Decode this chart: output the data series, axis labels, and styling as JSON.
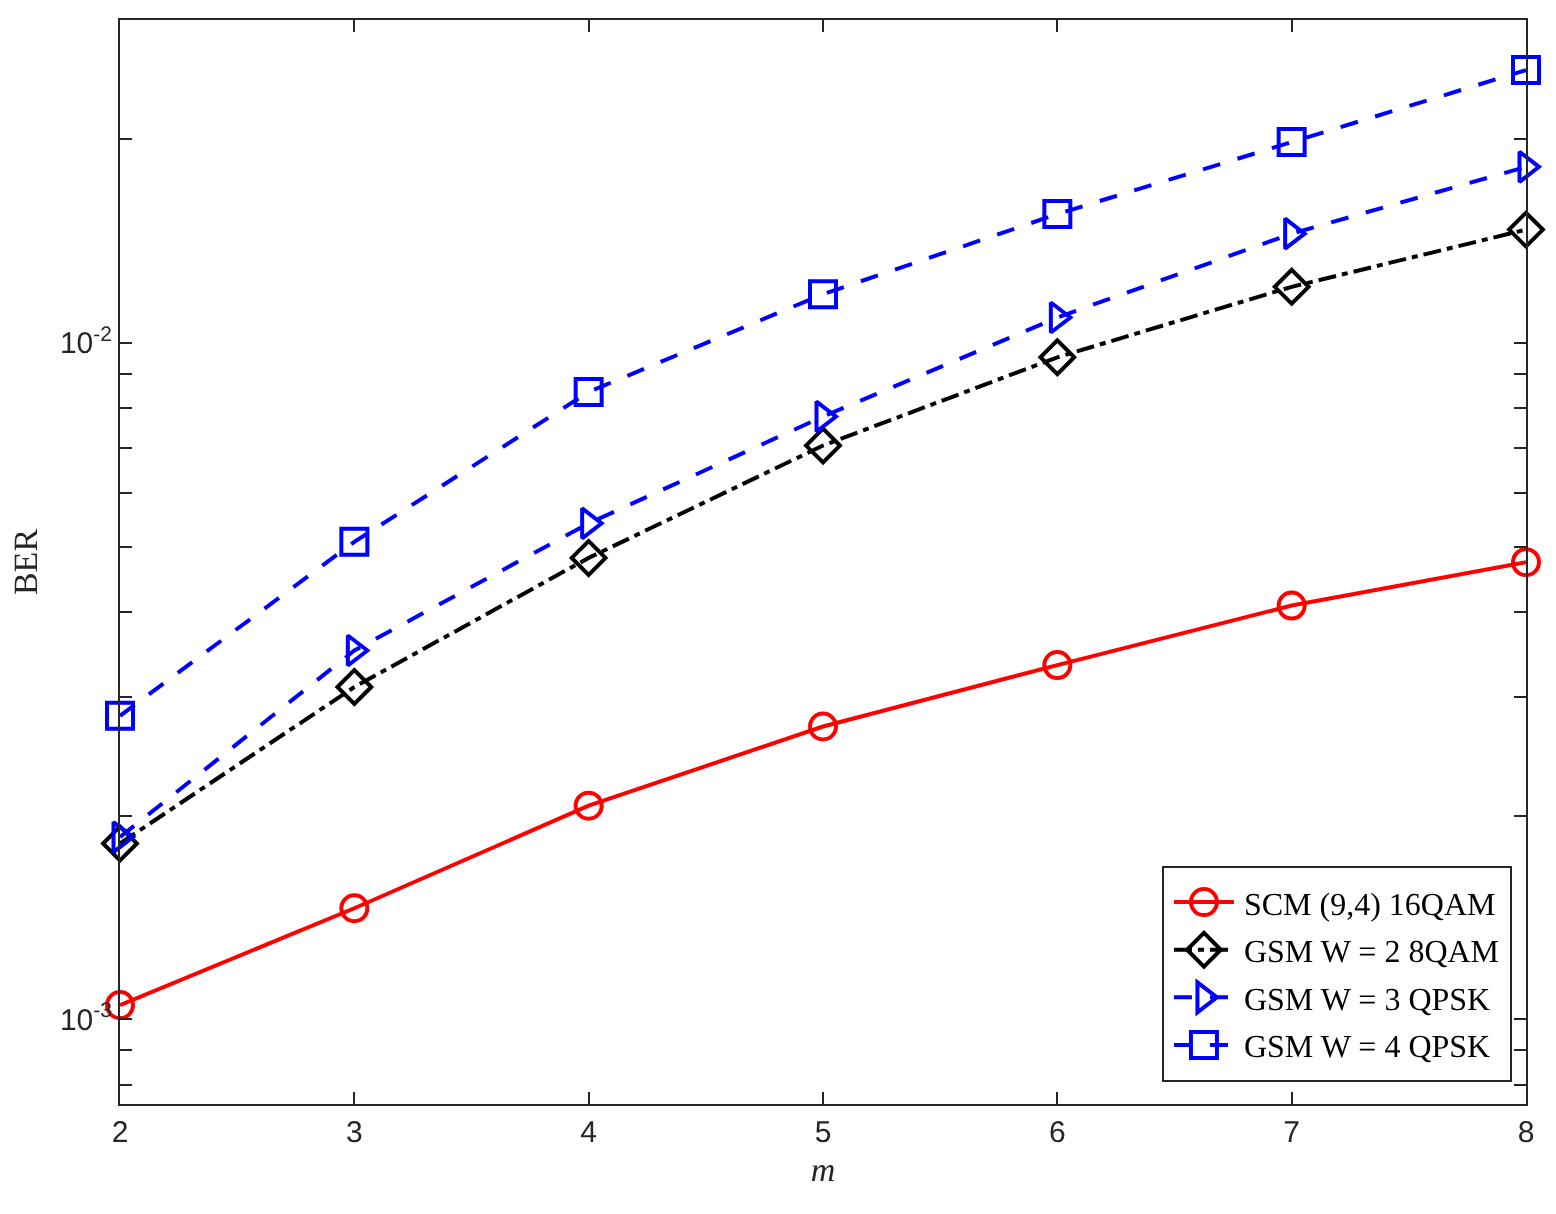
{
  "chart_data": {
    "type": "line",
    "xlabel": "m",
    "ylabel": "BER",
    "x": [
      2,
      3,
      4,
      5,
      6,
      7,
      8
    ],
    "series": [
      {
        "name": "SCM (9,4) 16QAM",
        "color": "#ff0000",
        "marker": "circle",
        "line_style": "solid",
        "values": [
          0.00105,
          0.00146,
          0.00207,
          0.00271,
          0.00334,
          0.00409,
          0.00474
        ]
      },
      {
        "name": "GSM W = 2 8QAM",
        "color": "#000000",
        "marker": "diamond",
        "line_style": "dashdot",
        "values": [
          0.00182,
          0.0031,
          0.00481,
          0.00705,
          0.00952,
          0.0121,
          0.0147
        ]
      },
      {
        "name": "GSM W = 3 QPSK",
        "color": "#0000ff",
        "marker": "triangle",
        "line_style": "dashed",
        "values": [
          0.00186,
          0.00351,
          0.00541,
          0.00778,
          0.0109,
          0.0145,
          0.0182
        ]
      },
      {
        "name": "GSM W = 4 QPSK",
        "color": "#0000ff",
        "marker": "square",
        "line_style": "dashed",
        "values": [
          0.00281,
          0.00508,
          0.00846,
          0.0118,
          0.0155,
          0.0198,
          0.0253
        ]
      }
    ],
    "log": "y",
    "xlim": [
      2,
      8
    ],
    "xticks": [
      2,
      3,
      4,
      5,
      6,
      7,
      8
    ],
    "ylim": [
      0.00075,
      0.03
    ],
    "yticks": [
      {
        "value": 0.0008,
        "label": null
      },
      {
        "value": 0.0009,
        "label": null
      },
      {
        "value": 0.001,
        "label": "10$^{-3}$"
      },
      {
        "value": 0.002,
        "label": null
      },
      {
        "value": 0.003,
        "label": null
      },
      {
        "value": 0.004,
        "label": null
      },
      {
        "value": 0.005,
        "label": null
      },
      {
        "value": 0.006,
        "label": null
      },
      {
        "value": 0.007,
        "label": null
      },
      {
        "value": 0.008,
        "label": null
      },
      {
        "value": 0.009,
        "label": null
      },
      {
        "value": 0.01,
        "label": "10$^{-2}$"
      },
      {
        "value": 0.02,
        "label": null
      },
      {
        "value": 0.03,
        "label": null
      }
    ],
    "legend": "bottom right"
  }
}
